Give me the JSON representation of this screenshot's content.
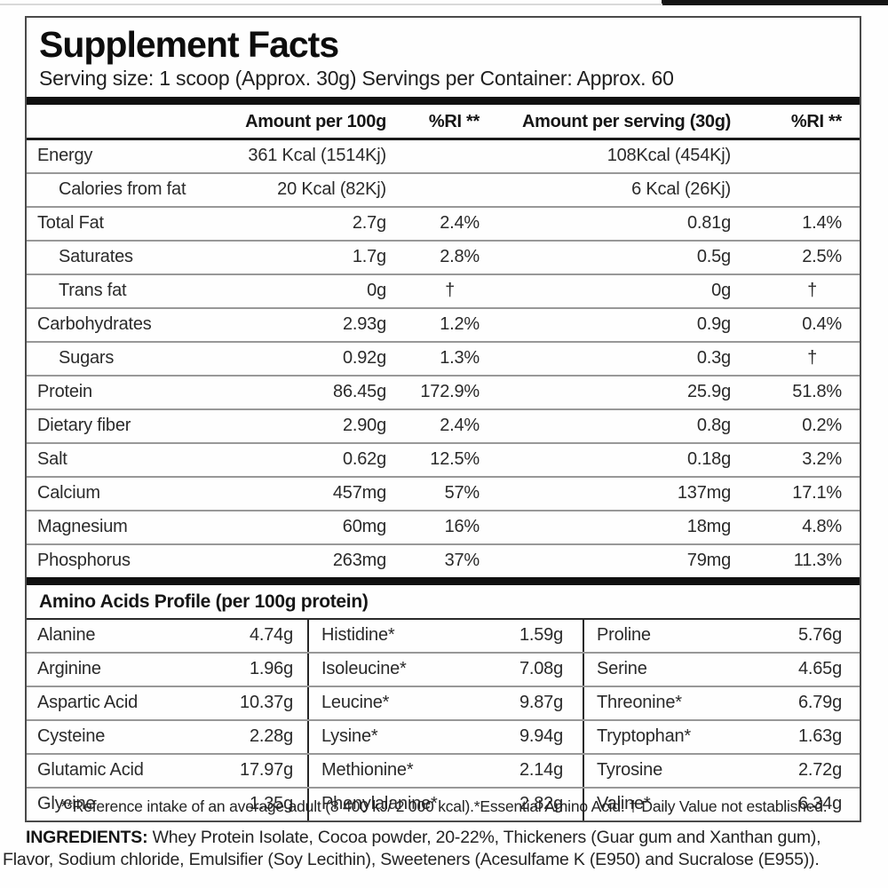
{
  "header": {
    "title": "Supplement Facts",
    "serving_line": "Serving size: 1 scoop (Approx. 30g) Servings per Container: Approx. 60"
  },
  "table": {
    "headers": {
      "amount100": "Amount per 100g",
      "ri100": "%RI **",
      "amount30": "Amount per serving (30g)",
      "ri30": "%RI **"
    },
    "rows": [
      {
        "name": "Energy",
        "indent": false,
        "amount100": "361 Kcal (1514Kj)",
        "ri100": "",
        "amount30": "108Kcal (454Kj)",
        "ri30": ""
      },
      {
        "name": "Calories from fat",
        "indent": true,
        "amount100": "20 Kcal (82Kj)",
        "ri100": "",
        "amount30": "6 Kcal (26Kj)",
        "ri30": ""
      },
      {
        "name": "Total Fat",
        "indent": false,
        "amount100": "2.7g",
        "ri100": "2.4%",
        "amount30": "0.81g",
        "ri30": "1.4%"
      },
      {
        "name": "Saturates",
        "indent": true,
        "amount100": "1.7g",
        "ri100": "2.8%",
        "amount30": "0.5g",
        "ri30": "2.5%"
      },
      {
        "name": "Trans fat",
        "indent": true,
        "amount100": "0g",
        "ri100": "†",
        "amount30": "0g",
        "ri30": "†"
      },
      {
        "name": "Carbohydrates",
        "indent": false,
        "amount100": "2.93g",
        "ri100": "1.2%",
        "amount30": "0.9g",
        "ri30": "0.4%"
      },
      {
        "name": "Sugars",
        "indent": true,
        "amount100": "0.92g",
        "ri100": "1.3%",
        "amount30": "0.3g",
        "ri30": "†"
      },
      {
        "name": "Protein",
        "indent": false,
        "amount100": "86.45g",
        "ri100": "172.9%",
        "amount30": "25.9g",
        "ri30": "51.8%"
      },
      {
        "name": "Dietary fiber",
        "indent": false,
        "amount100": "2.90g",
        "ri100": "2.4%",
        "amount30": "0.8g",
        "ri30": "0.2%"
      },
      {
        "name": "Salt",
        "indent": false,
        "amount100": "0.62g",
        "ri100": "12.5%",
        "amount30": "0.18g",
        "ri30": "3.2%"
      },
      {
        "name": "Calcium",
        "indent": false,
        "amount100": "457mg",
        "ri100": "57%",
        "amount30": "137mg",
        "ri30": "17.1%"
      },
      {
        "name": "Magnesium",
        "indent": false,
        "amount100": "60mg",
        "ri100": "16%",
        "amount30": "18mg",
        "ri30": "4.8%"
      },
      {
        "name": "Phosphorus",
        "indent": false,
        "amount100": "263mg",
        "ri100": "37%",
        "amount30": "79mg",
        "ri30": "11.3%"
      }
    ]
  },
  "amino": {
    "heading": "Amino Acids Profile (per 100g protein)",
    "rows": [
      [
        {
          "name": "Alanine",
          "value": "4.74g"
        },
        {
          "name": "Histidine*",
          "value": "1.59g"
        },
        {
          "name": "Proline",
          "value": "5.76g"
        }
      ],
      [
        {
          "name": "Arginine",
          "value": "1.96g"
        },
        {
          "name": "Isoleucine*",
          "value": "7.08g"
        },
        {
          "name": "Serine",
          "value": "4.65g"
        }
      ],
      [
        {
          "name": "Aspartic Acid",
          "value": "10.37g"
        },
        {
          "name": "Leucine*",
          "value": "9.87g"
        },
        {
          "name": "Threonine*",
          "value": "6.79g"
        }
      ],
      [
        {
          "name": "Cysteine",
          "value": "2.28g"
        },
        {
          "name": "Lysine*",
          "value": "9.94g"
        },
        {
          "name": "Tryptophan*",
          "value": "1.63g"
        }
      ],
      [
        {
          "name": "Glutamic Acid",
          "value": "17.97g"
        },
        {
          "name": "Methionine*",
          "value": "2.14g"
        },
        {
          "name": "Tyrosine",
          "value": "2.72g"
        }
      ],
      [
        {
          "name": "Glycine",
          "value": "1.35g"
        },
        {
          "name": "Phenylalanine*",
          "value": "2.82g"
        },
        {
          "name": "Valine*",
          "value": "6.34g"
        }
      ]
    ]
  },
  "footnotes": {
    "reference": "**Reference intake of an average adult (8 400 kJ/ 2 000 kcal).*Essential Amino Acid. † Daily Value not established.",
    "ingredients_label": "INGREDIENTS:",
    "ingredients_text": " Whey Protein Isolate, Cocoa powder, 20-22%, Thickeners (Guar gum and Xanthan gum), Flavor, Sodium chloride, Emulsifier (Soy Lecithin), Sweeteners (Acesulfame K (E950) and Sucralose (E955))."
  },
  "colors": {
    "text": "#2a2a2a",
    "heavy_bar": "#101010",
    "separator": "#989898",
    "frame_border": "#4a4a4a"
  }
}
